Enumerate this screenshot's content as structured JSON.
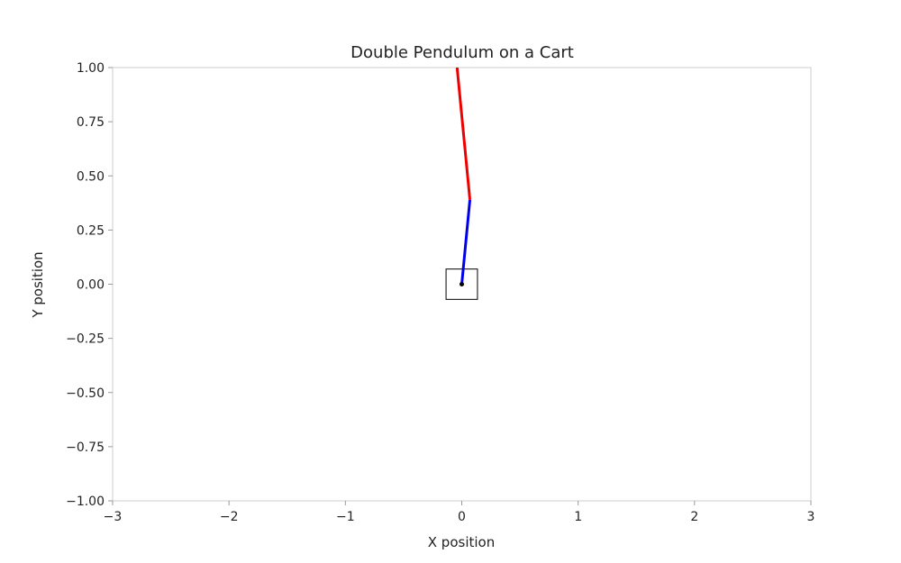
{
  "chart_data": {
    "type": "line",
    "title": "Double Pendulum on a Cart",
    "xlabel": "X position",
    "ylabel": "Y position",
    "xlim": [
      -3,
      3
    ],
    "ylim": [
      -1,
      1
    ],
    "grid": false,
    "x_ticks": [
      -3,
      -2,
      -1,
      0,
      1,
      2,
      3
    ],
    "y_ticks": [
      -1.0,
      -0.75,
      -0.5,
      -0.25,
      0.0,
      0.25,
      0.5,
      0.75,
      1.0
    ],
    "x_tick_labels": [
      "−3",
      "−2",
      "−1",
      "0",
      "1",
      "2",
      "3"
    ],
    "y_tick_labels": [
      "−1.00",
      "−0.75",
      "−0.50",
      "−0.25",
      "0.00",
      "0.25",
      "0.50",
      "0.75",
      "1.00"
    ],
    "cart": {
      "center": [
        0.0,
        0.0
      ],
      "width": 0.27,
      "height": 0.14
    },
    "pivot": [
      0.0,
      0.0
    ],
    "series": [
      {
        "color": "#0000ee",
        "x": [
          0.0,
          0.07
        ],
        "y": [
          0.0,
          0.39
        ]
      },
      {
        "color": "#ee0000",
        "x": [
          0.07,
          -0.04
        ],
        "y": [
          0.39,
          1.0
        ]
      }
    ]
  }
}
